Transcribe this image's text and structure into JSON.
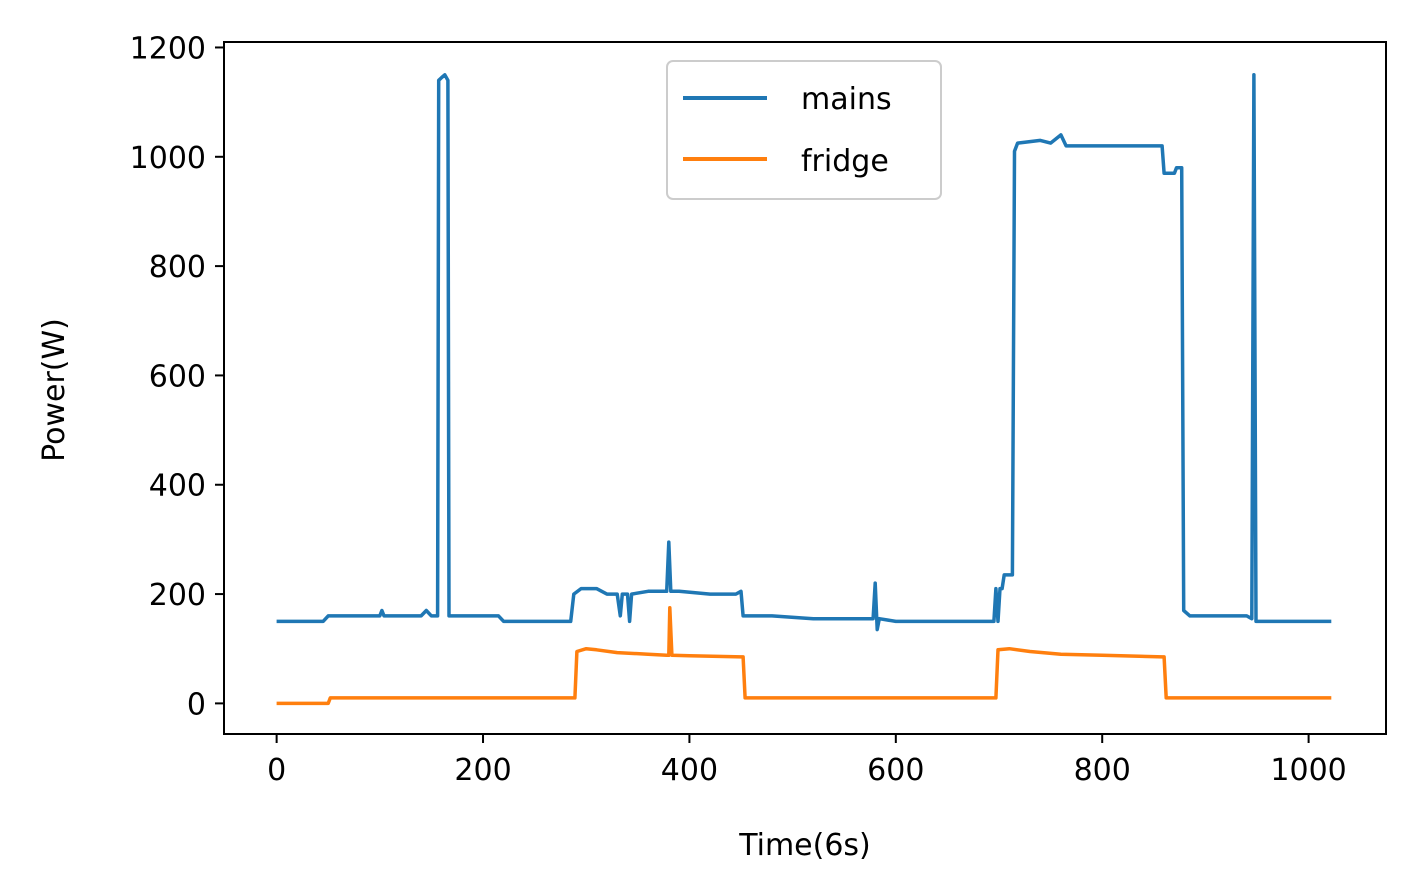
{
  "chart_data": {
    "type": "line",
    "xlabel": "Time(6s)",
    "ylabel": "Power(W)",
    "xlim": [
      -51,
      1075
    ],
    "ylim": [
      -56,
      1210
    ],
    "xticks": [
      0,
      200,
      400,
      600,
      800,
      1000
    ],
    "xtick_labels": [
      "0",
      "200",
      "400",
      "600",
      "800",
      "1000"
    ],
    "yticks": [
      0,
      200,
      400,
      600,
      800,
      1000,
      1200
    ],
    "ytick_labels": [
      "0",
      "200",
      "400",
      "600",
      "800",
      "1000",
      "1200"
    ],
    "legend_position": "upper-center",
    "grid": false,
    "series": [
      {
        "name": "mains",
        "color": "#1f77b4",
        "points": [
          [
            0,
            150
          ],
          [
            20,
            150
          ],
          [
            30,
            150
          ],
          [
            45,
            150
          ],
          [
            50,
            160
          ],
          [
            80,
            160
          ],
          [
            100,
            160
          ],
          [
            102,
            170
          ],
          [
            104,
            160
          ],
          [
            140,
            160
          ],
          [
            145,
            170
          ],
          [
            150,
            160
          ],
          [
            156,
            160
          ],
          [
            157,
            1140
          ],
          [
            160,
            1145
          ],
          [
            163,
            1150
          ],
          [
            166,
            1140
          ],
          [
            167,
            160
          ],
          [
            190,
            160
          ],
          [
            215,
            160
          ],
          [
            220,
            150
          ],
          [
            250,
            150
          ],
          [
            285,
            150
          ],
          [
            288,
            200
          ],
          [
            295,
            210
          ],
          [
            310,
            210
          ],
          [
            320,
            200
          ],
          [
            330,
            200
          ],
          [
            333,
            160
          ],
          [
            335,
            200
          ],
          [
            340,
            200
          ],
          [
            342,
            150
          ],
          [
            344,
            200
          ],
          [
            360,
            205
          ],
          [
            375,
            205
          ],
          [
            378,
            205
          ],
          [
            380,
            295
          ],
          [
            382,
            205
          ],
          [
            390,
            205
          ],
          [
            420,
            200
          ],
          [
            445,
            200
          ],
          [
            450,
            205
          ],
          [
            452,
            160
          ],
          [
            480,
            160
          ],
          [
            520,
            155
          ],
          [
            560,
            155
          ],
          [
            578,
            155
          ],
          [
            580,
            220
          ],
          [
            582,
            135
          ],
          [
            584,
            155
          ],
          [
            600,
            150
          ],
          [
            650,
            150
          ],
          [
            695,
            150
          ],
          [
            697,
            210
          ],
          [
            699,
            150
          ],
          [
            701,
            210
          ],
          [
            703,
            210
          ],
          [
            705,
            235
          ],
          [
            713,
            235
          ],
          [
            715,
            1010
          ],
          [
            718,
            1025
          ],
          [
            740,
            1030
          ],
          [
            750,
            1025
          ],
          [
            760,
            1040
          ],
          [
            765,
            1020
          ],
          [
            800,
            1020
          ],
          [
            820,
            1020
          ],
          [
            850,
            1020
          ],
          [
            858,
            1020
          ],
          [
            860,
            970
          ],
          [
            870,
            970
          ],
          [
            872,
            980
          ],
          [
            877,
            980
          ],
          [
            879,
            170
          ],
          [
            885,
            160
          ],
          [
            940,
            160
          ],
          [
            945,
            155
          ],
          [
            947,
            1150
          ],
          [
            949,
            150
          ],
          [
            960,
            150
          ],
          [
            1000,
            150
          ],
          [
            1022,
            150
          ]
        ]
      },
      {
        "name": "fridge",
        "color": "#ff7f0e",
        "points": [
          [
            0,
            0
          ],
          [
            50,
            0
          ],
          [
            52,
            10
          ],
          [
            100,
            10
          ],
          [
            200,
            10
          ],
          [
            289,
            10
          ],
          [
            291,
            95
          ],
          [
            300,
            100
          ],
          [
            310,
            98
          ],
          [
            330,
            93
          ],
          [
            360,
            90
          ],
          [
            378,
            88
          ],
          [
            380,
            88
          ],
          [
            381,
            175
          ],
          [
            383,
            88
          ],
          [
            400,
            87
          ],
          [
            450,
            85
          ],
          [
            452,
            85
          ],
          [
            454,
            10
          ],
          [
            500,
            10
          ],
          [
            600,
            10
          ],
          [
            697,
            10
          ],
          [
            699,
            98
          ],
          [
            710,
            100
          ],
          [
            730,
            95
          ],
          [
            760,
            90
          ],
          [
            800,
            88
          ],
          [
            858,
            85
          ],
          [
            860,
            85
          ],
          [
            862,
            10
          ],
          [
            900,
            10
          ],
          [
            1000,
            10
          ],
          [
            1022,
            10
          ]
        ]
      }
    ]
  }
}
